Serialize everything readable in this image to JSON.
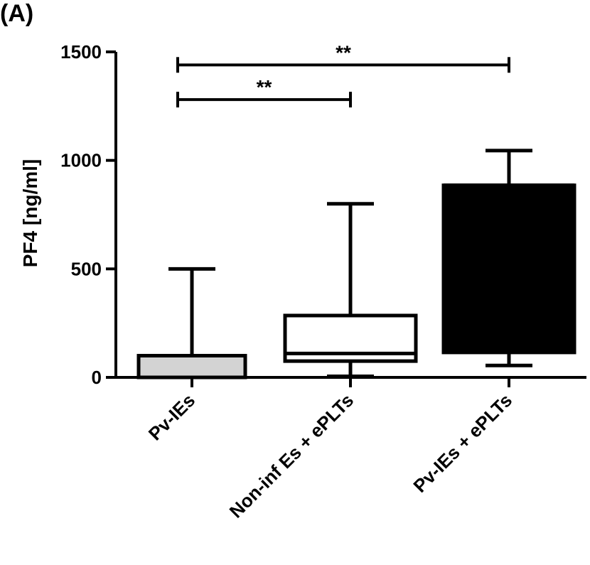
{
  "panel_label": "(A)",
  "chart_data": {
    "type": "boxplot",
    "ylabel": "PF4 [ng/ml]",
    "ylim": [
      0,
      1500
    ],
    "yticks": [
      0,
      500,
      1000,
      1500
    ],
    "categories": [
      "Pv-IEs",
      "Non-inf Es + ePLTs",
      "Pv-IEs + ePLTs"
    ],
    "boxes": [
      {
        "category": "Pv-IEs",
        "min": 0,
        "q1": 0,
        "median": 0,
        "q3": 100,
        "max": 500,
        "fill": "#d3d3d3"
      },
      {
        "category": "Non-inf Es + ePLTs",
        "min": 5,
        "q1": 75,
        "median": 110,
        "q3": 285,
        "max": 800,
        "fill": "#ffffff"
      },
      {
        "category": "Pv-IEs + ePLTs",
        "min": 55,
        "q1": 115,
        "median": 885,
        "q3": 885,
        "max": 1045,
        "fill": "#000000"
      }
    ],
    "significance": [
      {
        "from": 0,
        "to": 1,
        "y": 1280,
        "label": "**"
      },
      {
        "from": 0,
        "to": 2,
        "y": 1440,
        "label": "**"
      }
    ]
  }
}
